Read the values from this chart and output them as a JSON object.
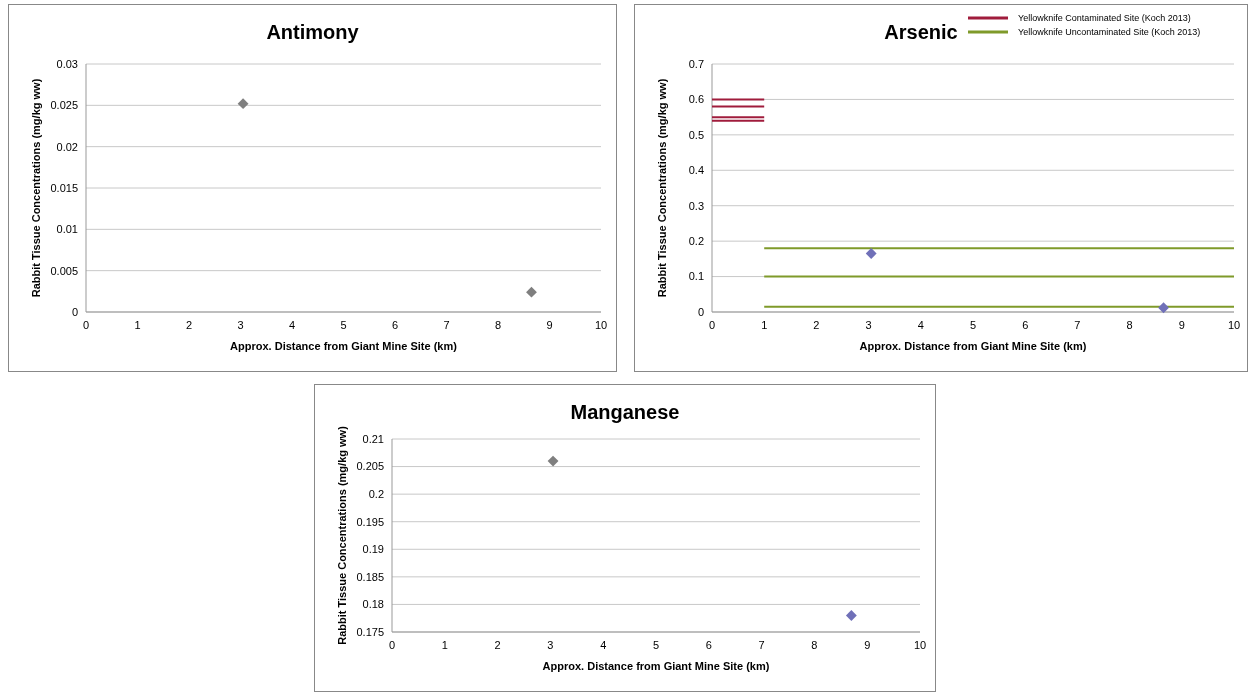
{
  "chart_data": [
    {
      "type": "scatter",
      "title": "Antimony",
      "xlabel": "Approx. Distance from Giant Mine Site (km)",
      "ylabel": "Rabbit Tissue Concentrations (mg/kg ww)",
      "xlim": [
        0,
        10
      ],
      "xticks": [
        0,
        1,
        2,
        3,
        4,
        5,
        6,
        7,
        8,
        9,
        10
      ],
      "ylim": [
        0,
        0.03
      ],
      "yticks": [
        0,
        0.005,
        0.01,
        0.015,
        0.02,
        0.025,
        0.03
      ],
      "grid": "y",
      "marker": "diamond",
      "legend": false,
      "series": [
        {
          "x": [
            3.05,
            8.65
          ],
          "values": [
            0.0252,
            0.0024
          ],
          "colors": [
            "#7f7f7f",
            "#7f7f7f"
          ]
        }
      ]
    },
    {
      "type": "scatter",
      "title": "Arsenic",
      "xlabel": "Approx. Distance from Giant Mine Site (km)",
      "ylabel": "Rabbit Tissue Concentrations (mg/kg ww)",
      "xlim": [
        0,
        10
      ],
      "xticks": [
        0,
        1,
        2,
        3,
        4,
        5,
        6,
        7,
        8,
        9,
        10
      ],
      "ylim": [
        0,
        0.7
      ],
      "yticks": [
        0,
        0.1,
        0.2,
        0.3,
        0.4,
        0.5,
        0.6,
        0.7
      ],
      "grid": "y",
      "legend": "top right",
      "series": [
        {
          "marker": "diamond",
          "x": [
            3.05,
            8.65
          ],
          "values": [
            0.165,
            0.012
          ],
          "colors": [
            "#7070b8",
            "#7070b8"
          ]
        },
        {
          "type": "line",
          "marker": "none",
          "name": "Yellowknife Contaminated Site (Koch 2013)",
          "color": "#a01c3c",
          "x": [
            0,
            1
          ],
          "values": [
            0.6,
            0.6
          ]
        },
        {
          "type": "line",
          "marker": "none",
          "color": "#a01c3c",
          "x": [
            0,
            1
          ],
          "values": [
            0.58,
            0.58
          ]
        },
        {
          "type": "line",
          "marker": "none",
          "color": "#a01c3c",
          "x": [
            0,
            1
          ],
          "values": [
            0.55,
            0.55
          ]
        },
        {
          "type": "line",
          "marker": "none",
          "color": "#a01c3c",
          "x": [
            0,
            1
          ],
          "values": [
            0.54,
            0.54
          ]
        },
        {
          "type": "line",
          "marker": "none",
          "name": "Yellowknife Uncontaminated Site (Koch 2013)",
          "color": "#7f9a2a",
          "x": [
            1,
            10
          ],
          "values": [
            0.18,
            0.18
          ]
        },
        {
          "type": "line",
          "marker": "none",
          "color": "#7f9a2a",
          "x": [
            1,
            10
          ],
          "values": [
            0.1,
            0.1
          ]
        },
        {
          "type": "line",
          "marker": "none",
          "color": "#7f9a2a",
          "x": [
            1,
            10
          ],
          "values": [
            0.015,
            0.015
          ]
        }
      ]
    },
    {
      "type": "scatter",
      "title": "Manganese",
      "xlabel": "Approx. Distance from Giant Mine Site (km)",
      "ylabel": "Rabbit Tissue Concentrations (mg/kg ww)",
      "xlim": [
        0,
        10
      ],
      "xticks": [
        0,
        1,
        2,
        3,
        4,
        5,
        6,
        7,
        8,
        9,
        10
      ],
      "ylim": [
        0.175,
        0.21
      ],
      "yticks": [
        0.175,
        0.18,
        0.185,
        0.19,
        0.195,
        0.2,
        0.205,
        0.21
      ],
      "grid": "y",
      "marker": "diamond",
      "legend": false,
      "series": [
        {
          "x": [
            3.05,
            8.7
          ],
          "values": [
            0.206,
            0.178
          ],
          "colors": [
            "#7f7f7f",
            "#7070b8"
          ]
        }
      ]
    }
  ]
}
